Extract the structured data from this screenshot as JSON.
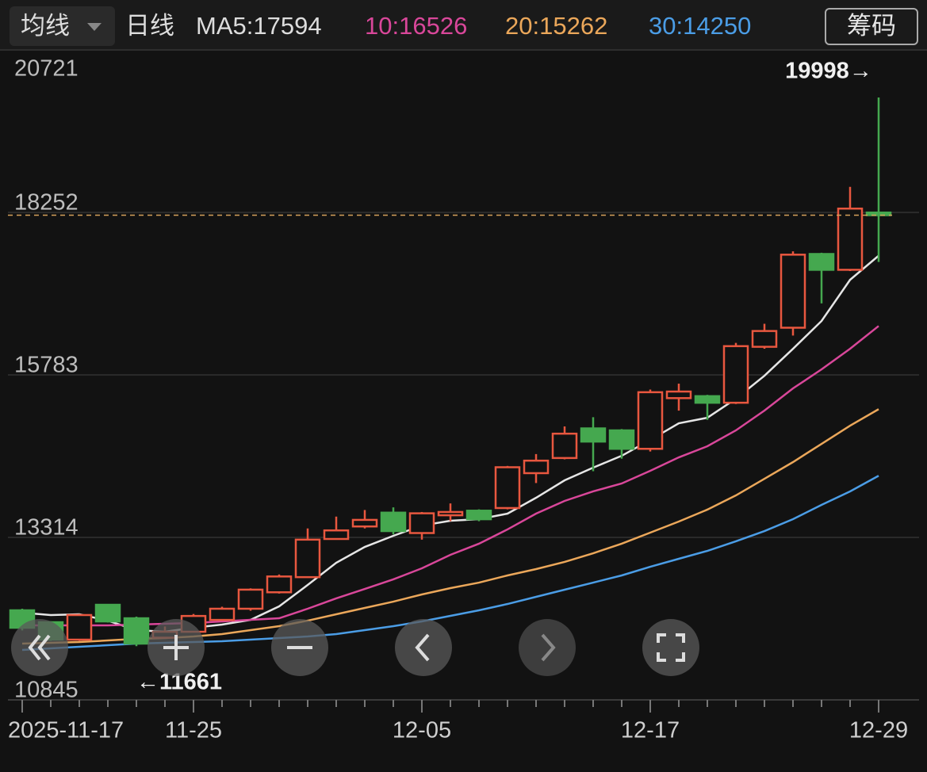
{
  "toolbar": {
    "indicator": "均线",
    "period": "日线",
    "button": "筹码"
  },
  "chart_data": {
    "type": "candlestick",
    "categories": [
      "2025-11-17",
      null,
      null,
      null,
      null,
      null,
      "11-25",
      null,
      null,
      null,
      null,
      null,
      null,
      null,
      "12-05",
      null,
      null,
      null,
      null,
      null,
      null,
      null,
      "12-17",
      null,
      null,
      null,
      null,
      null,
      null,
      null,
      "12-29"
    ],
    "open": [
      12206,
      12025,
      11760,
      12290,
      12085,
      11790,
      11880,
      12060,
      12230,
      12480,
      12710,
      13290,
      13480,
      13690,
      13380,
      13650,
      13720,
      13760,
      14290,
      14520,
      14970,
      14940,
      14660,
      15430,
      15460,
      15360,
      16210,
      16500,
      17620,
      17380,
      18250
    ],
    "high": [
      12230,
      12040,
      12150,
      12300,
      12110,
      11960,
      12150,
      12260,
      12540,
      12750,
      13450,
      13630,
      13730,
      13770,
      13700,
      13830,
      13740,
      14400,
      14580,
      15000,
      15140,
      14960,
      15560,
      15650,
      15480,
      16270,
      16560,
      17660,
      17640,
      18640,
      19998
    ],
    "low": [
      11900,
      11740,
      11740,
      12020,
      11661,
      11780,
      11870,
      12050,
      12200,
      12460,
      12700,
      13280,
      13450,
      13360,
      13280,
      13560,
      13560,
      13740,
      14140,
      14500,
      14320,
      14510,
      14620,
      15240,
      15100,
      15340,
      16180,
      16380,
      16870,
      17360,
      17500
    ],
    "close": [
      11941,
      11761,
      12134,
      12037,
      11700,
      11880,
      12120,
      12230,
      12520,
      12720,
      13280,
      13420,
      13580,
      13410,
      13680,
      13700,
      13590,
      14380,
      14480,
      14890,
      14770,
      14660,
      15520,
      15530,
      15360,
      16220,
      16450,
      17610,
      17380,
      18310,
      18210
    ],
    "up_color": "#e8573f",
    "down_color": "#45a84f",
    "series": [
      {
        "name": "MA5",
        "color": "#e6e6e6",
        "values": [
          12170,
          12134,
          12146,
          12049,
          11905,
          11881,
          11941,
          11989,
          12061,
          12266,
          12591,
          12928,
          13169,
          13338,
          13494,
          13567,
          13591,
          13675,
          13916,
          14181,
          14374,
          14554,
          14795,
          15048,
          15132,
          15421,
          15770,
          16180,
          16602,
          17228,
          17594
        ]
      },
      {
        "name": "10",
        "color": "#d9479a",
        "values": [
          11977,
          11977,
          11977,
          11977,
          11989,
          12001,
          12013,
          12037,
          12061,
          12085,
          12230,
          12387,
          12531,
          12676,
          12844,
          13049,
          13218,
          13435,
          13675,
          13868,
          14013,
          14133,
          14326,
          14530,
          14699,
          14940,
          15241,
          15578,
          15867,
          16180,
          16526
        ]
      },
      {
        "name": "20",
        "color": "#eba75a",
        "values": [
          11700,
          11712,
          11724,
          11748,
          11772,
          11784,
          11808,
          11845,
          11905,
          11965,
          12049,
          12146,
          12242,
          12338,
          12447,
          12543,
          12627,
          12736,
          12832,
          12941,
          13073,
          13218,
          13386,
          13555,
          13736,
          13952,
          14205,
          14458,
          14735,
          15012,
          15262
        ]
      },
      {
        "name": "30",
        "color": "#4b9de6",
        "values": [
          11604,
          11628,
          11652,
          11676,
          11700,
          11712,
          11724,
          11736,
          11760,
          11784,
          11808,
          11845,
          11905,
          11965,
          12037,
          12122,
          12206,
          12302,
          12411,
          12519,
          12627,
          12736,
          12868,
          12989,
          13109,
          13254,
          13410,
          13591,
          13808,
          14013,
          14250
        ]
      }
    ],
    "ylim": [
      10845,
      20721
    ],
    "yticks": [
      20721,
      18252,
      15783,
      13314,
      10845
    ],
    "grid": true,
    "annotations": [
      {
        "text": "19998→"
      },
      {
        "text": "←11661"
      }
    ]
  }
}
